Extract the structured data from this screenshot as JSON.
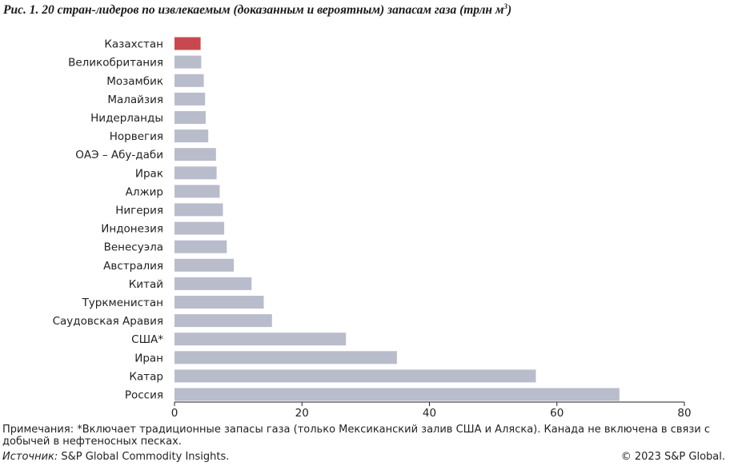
{
  "title_prefix": "Рис. 1. 20 стран-лидеров по извлекаемым (доказанным и вероятным) запасам газа (трлн м",
  "title_sup": "3",
  "title_suffix": ")",
  "chart_data": {
    "type": "bar",
    "orientation": "horizontal",
    "categories": [
      "Казахстан",
      "Великобритания",
      "Мозамбик",
      "Малайзия",
      "Нидерланды",
      "Норвегия",
      "ОАЭ – Абу-даби",
      "Ирак",
      "Алжир",
      "Нигерия",
      "Индонезия",
      "Венесуэла",
      "Австралия",
      "Китай",
      "Туркменистан",
      "Саудовская Аравия",
      "США*",
      "Иран",
      "Катар",
      "Россия"
    ],
    "values": [
      4.1,
      4.2,
      4.6,
      4.8,
      4.9,
      5.3,
      6.5,
      6.6,
      7.1,
      7.6,
      7.8,
      8.2,
      9.3,
      12.1,
      14.0,
      15.3,
      26.9,
      34.9,
      56.7,
      69.8
    ],
    "highlight_index": 0,
    "bar_color": "#b9bccb",
    "highlight_color": "#c8484f",
    "xlim": [
      0,
      80
    ],
    "xticks": [
      0,
      20,
      40,
      60,
      80
    ],
    "grid": false
  },
  "notes": "Примечания: *Включает традиционные запасы газа (только Мексиканский залив США и Аляска). Канада не включена в связи с добычей в нефтеносных песках.",
  "source_label": "Источник:",
  "source_text": " S&P Global Commodity Insights.",
  "copyright": "© 2023 S&P Global."
}
